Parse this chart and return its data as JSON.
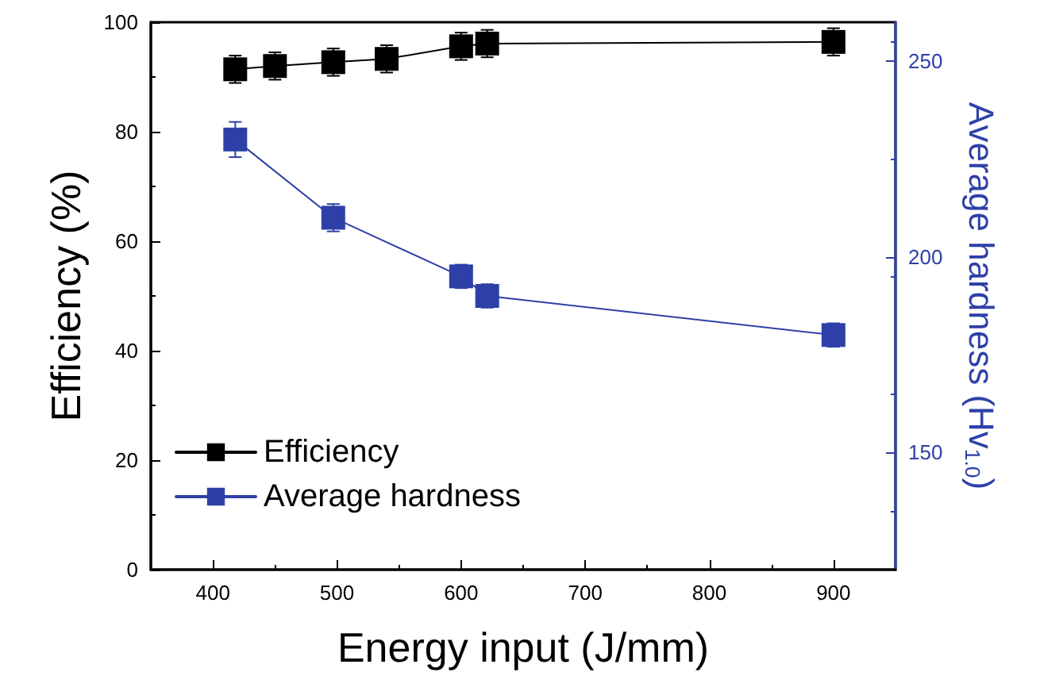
{
  "chart_data": {
    "type": "line",
    "xlabel": "Energy input (J/mm)",
    "ylabel": "Efficiency (%)",
    "y2label": "Average hardness (Hv$_{1.0}$)",
    "xlim": [
      350,
      950
    ],
    "xticks": [
      400,
      500,
      600,
      700,
      800,
      900
    ],
    "ylim": [
      0,
      100
    ],
    "yticks": [
      0,
      20,
      40,
      60,
      80,
      100
    ],
    "y2lim": [
      120,
      260
    ],
    "y2ticks": [
      150,
      200,
      250
    ],
    "series": [
      {
        "name": "Efficiency",
        "color": "#000000",
        "x": [
          418,
          450,
          497,
          540,
          600,
          621,
          900
        ],
        "values": [
          91.4,
          92,
          92.7,
          93.3,
          95.6,
          96.1,
          96.4
        ],
        "errors": [
          2.5,
          2.5,
          2.5,
          2.5,
          2.5,
          2.5,
          2.5
        ]
      },
      {
        "name": "Average hardness",
        "color": "#2e40a8",
        "axis": "y2",
        "x": [
          418,
          497,
          600,
          621,
          900
        ],
        "values": [
          230,
          210,
          195,
          190,
          180
        ],
        "errors": [
          4.5,
          3.5,
          3,
          3,
          3
        ]
      }
    ],
    "marker": "square",
    "line_style": "solid",
    "legend": "bottom left",
    "grid": false
  }
}
